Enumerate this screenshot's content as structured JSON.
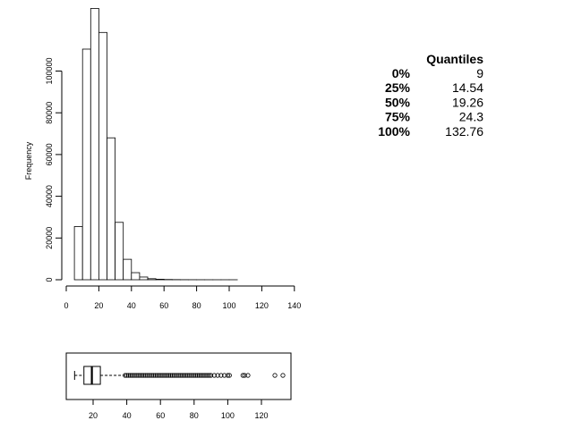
{
  "chart_data": [
    {
      "type": "bar",
      "subtype": "histogram",
      "title": "",
      "xlabel": "",
      "ylabel": "Frequency",
      "bin_width": 5,
      "bins": [
        {
          "x0": 5,
          "x1": 10,
          "count": 25500
        },
        {
          "x0": 10,
          "x1": 15,
          "count": 110500
        },
        {
          "x0": 15,
          "x1": 20,
          "count": 130000
        },
        {
          "x0": 20,
          "x1": 25,
          "count": 118500
        },
        {
          "x0": 25,
          "x1": 30,
          "count": 68000
        },
        {
          "x0": 30,
          "x1": 35,
          "count": 27500
        },
        {
          "x0": 35,
          "x1": 40,
          "count": 9800
        },
        {
          "x0": 40,
          "x1": 45,
          "count": 3400
        },
        {
          "x0": 45,
          "x1": 50,
          "count": 1300
        },
        {
          "x0": 50,
          "x1": 55,
          "count": 500
        },
        {
          "x0": 55,
          "x1": 60,
          "count": 250
        },
        {
          "x0": 60,
          "x1": 65,
          "count": 120
        },
        {
          "x0": 65,
          "x1": 70,
          "count": 70
        },
        {
          "x0": 70,
          "x1": 75,
          "count": 40
        },
        {
          "x0": 75,
          "x1": 80,
          "count": 25
        },
        {
          "x0": 80,
          "x1": 85,
          "count": 15
        },
        {
          "x0": 85,
          "x1": 90,
          "count": 10
        },
        {
          "x0": 90,
          "x1": 95,
          "count": 6
        },
        {
          "x0": 95,
          "x1": 100,
          "count": 4
        },
        {
          "x0": 100,
          "x1": 105,
          "count": 3
        },
        {
          "x0": 105,
          "x1": 110,
          "count": 2
        },
        {
          "x0": 110,
          "x1": 115,
          "count": 2
        },
        {
          "x0": 115,
          "x1": 120,
          "count": 1
        },
        {
          "x0": 120,
          "x1": 125,
          "count": 1
        },
        {
          "x0": 125,
          "x1": 130,
          "count": 1
        },
        {
          "x0": 130,
          "x1": 135,
          "count": 1
        }
      ],
      "xlim": [
        0,
        140
      ],
      "ylim": [
        0,
        130000
      ],
      "x_ticks": [
        "0",
        "20",
        "40",
        "60",
        "80",
        "100",
        "120",
        "140"
      ],
      "y_ticks": [
        "0",
        "20000",
        "40000",
        "60000",
        "80000",
        "100000"
      ],
      "grid": false
    },
    {
      "type": "boxplot",
      "orientation": "horizontal",
      "title": "",
      "xlabel": "",
      "stats": {
        "whisker_low": 9,
        "q1": 14.54,
        "median": 19.26,
        "q3": 24.3,
        "whisker_high": 38.9
      },
      "outliers": [
        39,
        40,
        41,
        42,
        43,
        44,
        45,
        46,
        47,
        48,
        49,
        50,
        51,
        52,
        53,
        54,
        55,
        56,
        57,
        58,
        59,
        60,
        61,
        62,
        63,
        64,
        65,
        66,
        67,
        68,
        69,
        70,
        71,
        72,
        73,
        74,
        75,
        76,
        77,
        78,
        79,
        80,
        81,
        82,
        83,
        84,
        85,
        86,
        87,
        88,
        89,
        90,
        92,
        94,
        96,
        98,
        100,
        101,
        109,
        110,
        112,
        128,
        132.76
      ],
      "xlim": [
        5,
        135
      ],
      "x_ticks": [
        "20",
        "40",
        "60",
        "80",
        "100",
        "120"
      ],
      "grid": false
    },
    {
      "type": "table",
      "header": "Quantiles",
      "rows": [
        {
          "label": "0%",
          "value": "9"
        },
        {
          "label": "25%",
          "value": "14.54"
        },
        {
          "label": "50%",
          "value": "19.26"
        },
        {
          "label": "75%",
          "value": "24.3"
        },
        {
          "label": "100%",
          "value": "132.76"
        }
      ]
    }
  ]
}
